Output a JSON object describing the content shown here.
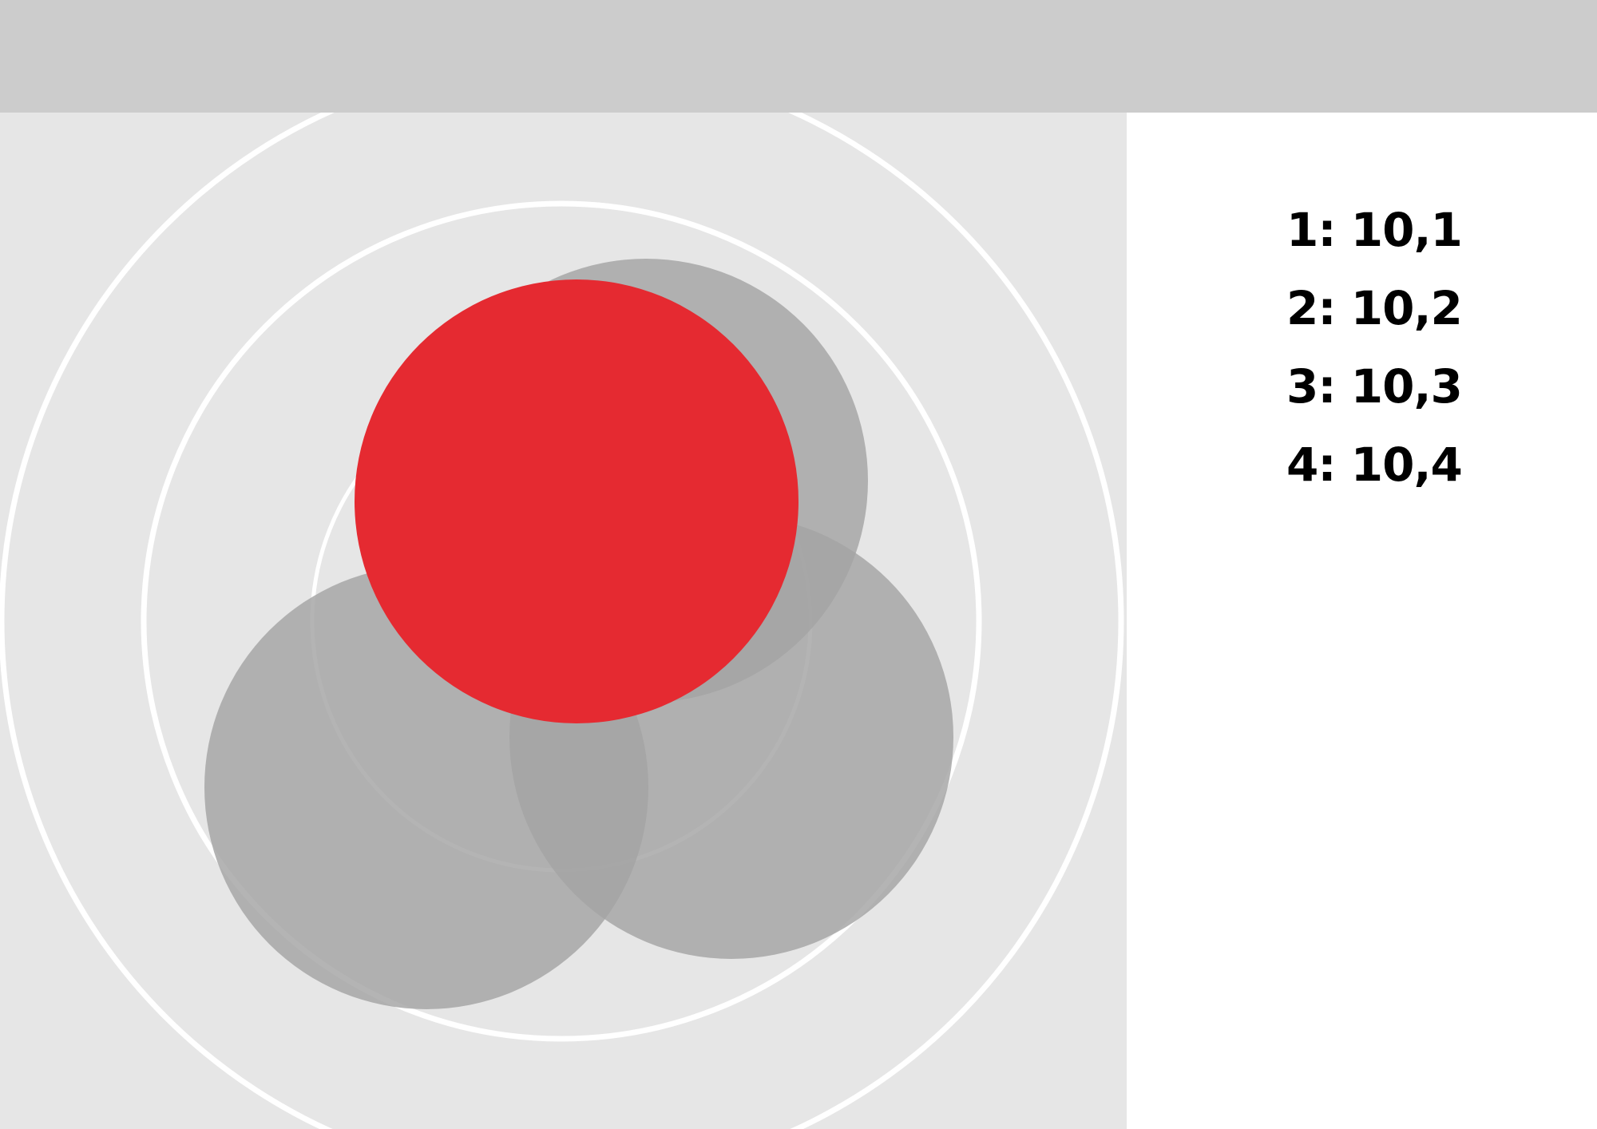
{
  "colors": {
    "top_bar": "#cccccc",
    "canvas_background": "#e6e6e6",
    "ring_stroke": "#ffffff",
    "gray_circle": "#a3a3a3",
    "highlight_circle": "#e52a31",
    "legend_text": "#000000"
  },
  "legend": {
    "items": [
      {
        "label": "1: 10,1"
      },
      {
        "label": "2: 10,2"
      },
      {
        "label": "3: 10,3"
      },
      {
        "label": "4: 10,4"
      }
    ]
  },
  "diagram": {
    "circle_count": 4,
    "highlighted_circle": 1,
    "ring_count": 3
  }
}
